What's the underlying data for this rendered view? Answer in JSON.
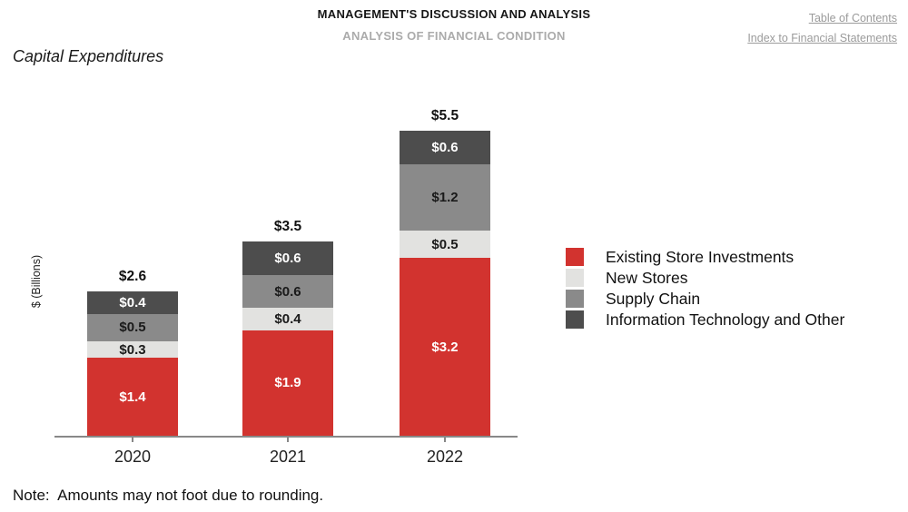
{
  "header": {
    "line1": "MANAGEMENT'S DISCUSSION AND ANALYSIS",
    "line2": "ANALYSIS OF FINANCIAL CONDITION",
    "links": [
      "Table of Contents",
      "Index to Financial Statements"
    ]
  },
  "section_title": "Capital Expenditures",
  "note": "Note:  Amounts may not foot due to rounding.",
  "chart_data": {
    "type": "bar",
    "stacked": true,
    "title": "Capital Expenditures",
    "ylabel": "$ (Billions)",
    "xlabel": "",
    "categories": [
      "2020",
      "2021",
      "2022"
    ],
    "series": [
      {
        "name": "Existing Store Investments",
        "color": "#D2332F",
        "label_color": "#FFFFFF",
        "values": [
          1.4,
          1.9,
          3.2
        ]
      },
      {
        "name": "New Stores",
        "color": "#E2E2E0",
        "label_color": "#1A1A1A",
        "values": [
          0.3,
          0.4,
          0.5
        ]
      },
      {
        "name": "Supply Chain",
        "color": "#8A8A8A",
        "label_color": "#1A1A1A",
        "values": [
          0.5,
          0.6,
          1.2
        ]
      },
      {
        "name": "Information Technology and Other",
        "color": "#4D4D4D",
        "label_color": "#FFFFFF",
        "values": [
          0.4,
          0.6,
          0.6
        ]
      }
    ],
    "totals": [
      2.6,
      3.5,
      5.5
    ],
    "value_label_format": "$#.#",
    "ylim": [
      0,
      6
    ],
    "grid": false,
    "legend_position": "right"
  }
}
